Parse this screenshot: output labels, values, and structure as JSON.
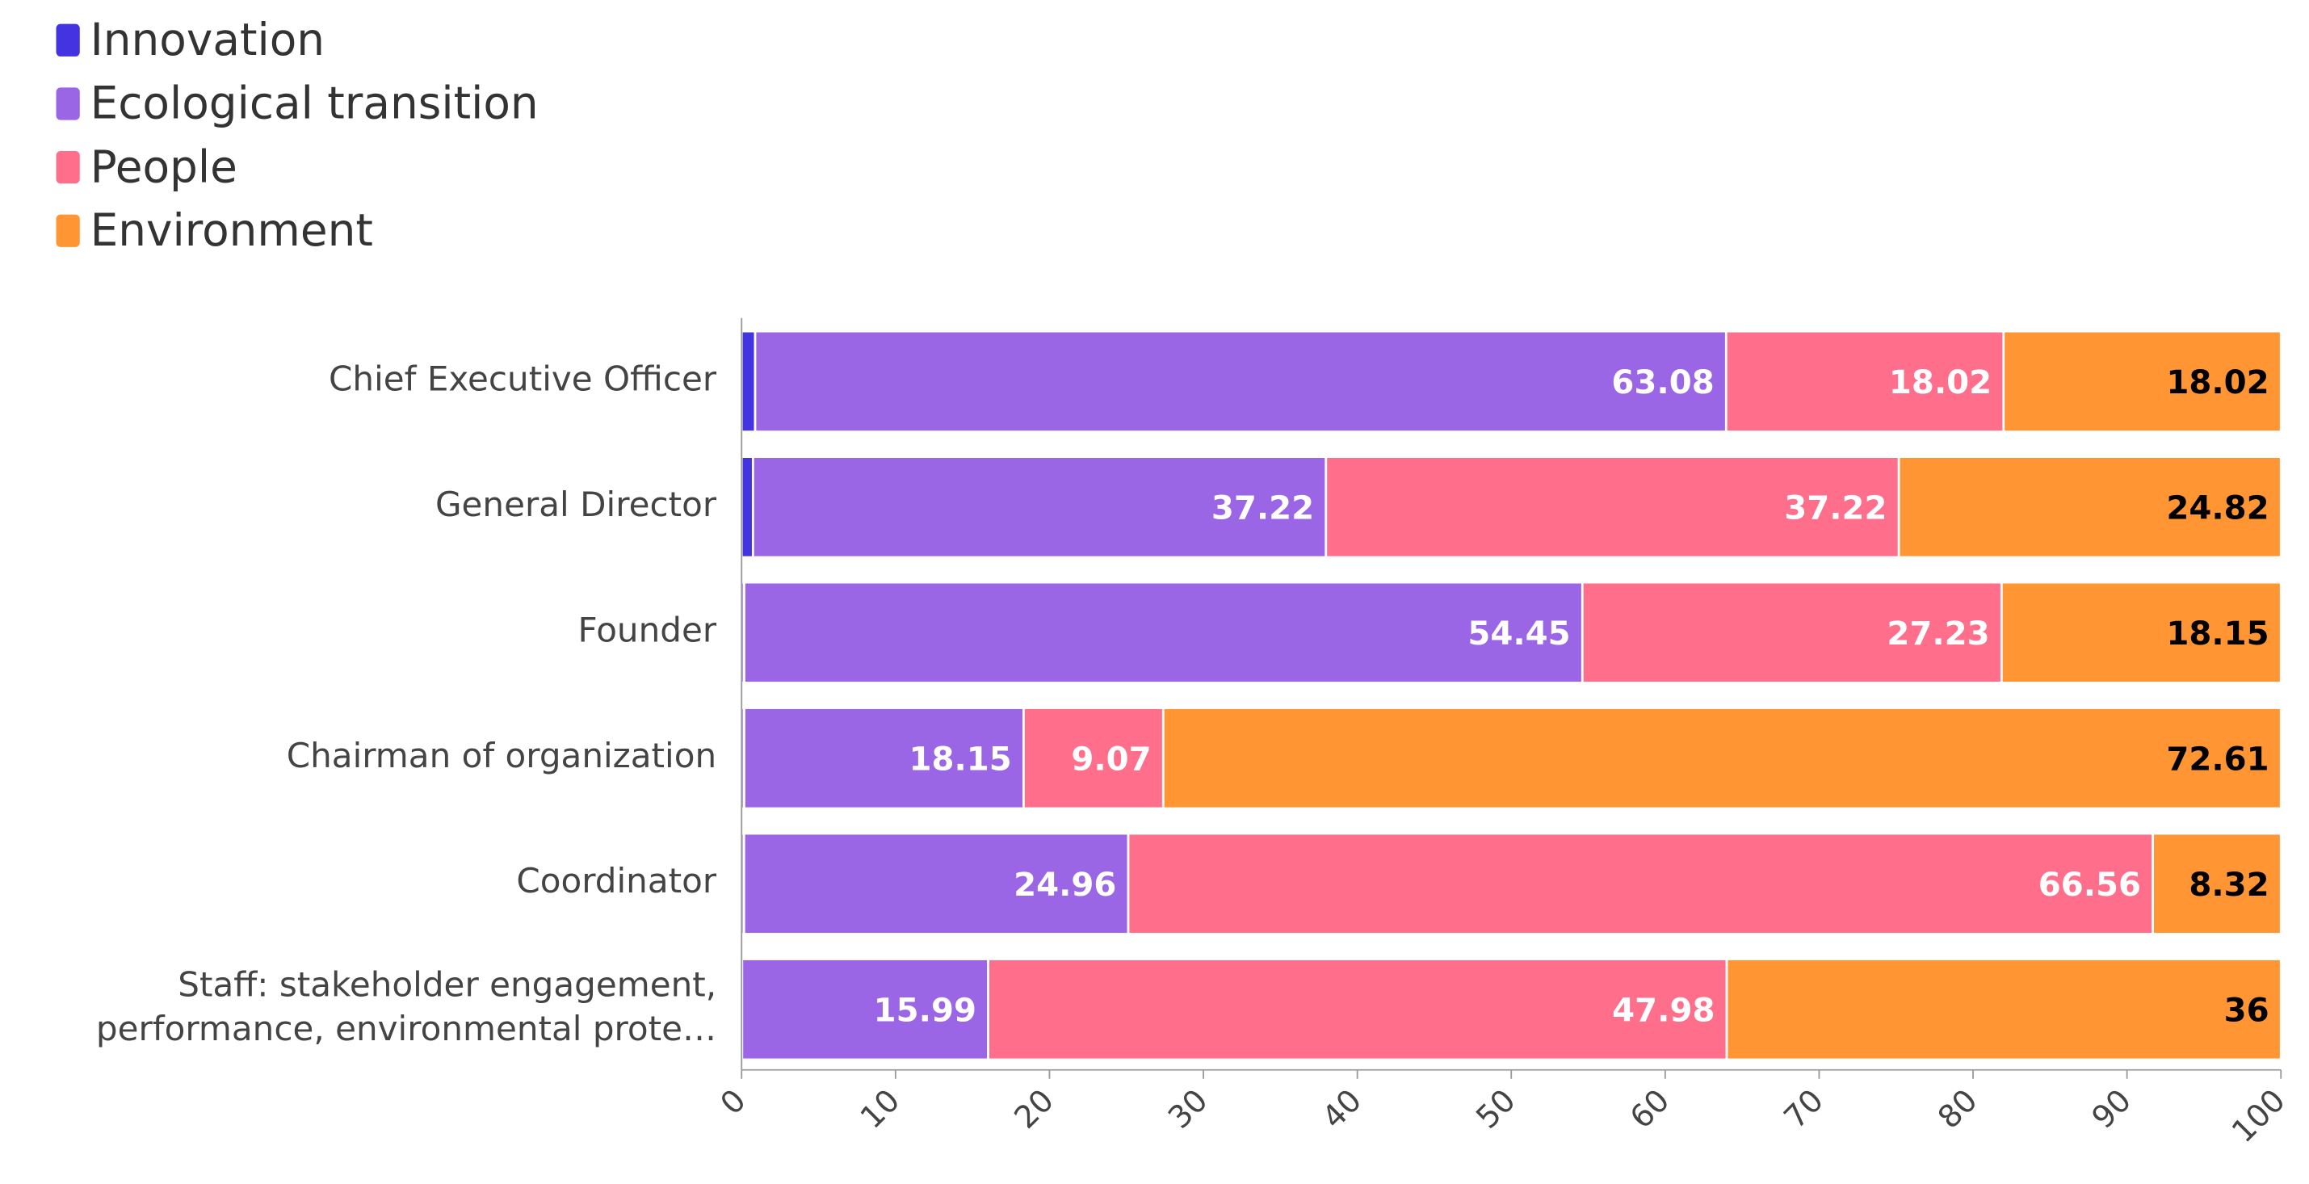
{
  "chart_data": {
    "type": "stacked-bar-horizontal",
    "categories": [
      "Chief Executive Officer",
      "General Director",
      "Founder",
      "Chairman of organization",
      "Coordinator",
      "Staff: stakeholder engagement, performance, environmental prote…"
    ],
    "series": [
      {
        "name": "Innovation",
        "color": "#4433e0",
        "values": [
          0.88,
          0.74,
          0.17,
          0.17,
          0.16,
          0.03
        ],
        "show_labels": false
      },
      {
        "name": "Ecological transition",
        "color": "#9b66e6",
        "values": [
          63.08,
          37.22,
          54.45,
          18.15,
          24.96,
          15.99
        ],
        "show_labels": true
      },
      {
        "name": "People",
        "color": "#ff6f8c",
        "values": [
          18.02,
          37.22,
          27.23,
          9.07,
          66.56,
          47.98
        ],
        "show_labels": true
      },
      {
        "name": "Environment",
        "color": "#ff9533",
        "values": [
          18.02,
          24.82,
          18.15,
          72.61,
          8.32,
          36
        ],
        "show_labels": true
      }
    ],
    "xlim": [
      0,
      100
    ],
    "xticks": [
      0,
      10,
      20,
      30,
      40,
      50,
      60,
      70,
      80,
      90,
      100
    ]
  }
}
